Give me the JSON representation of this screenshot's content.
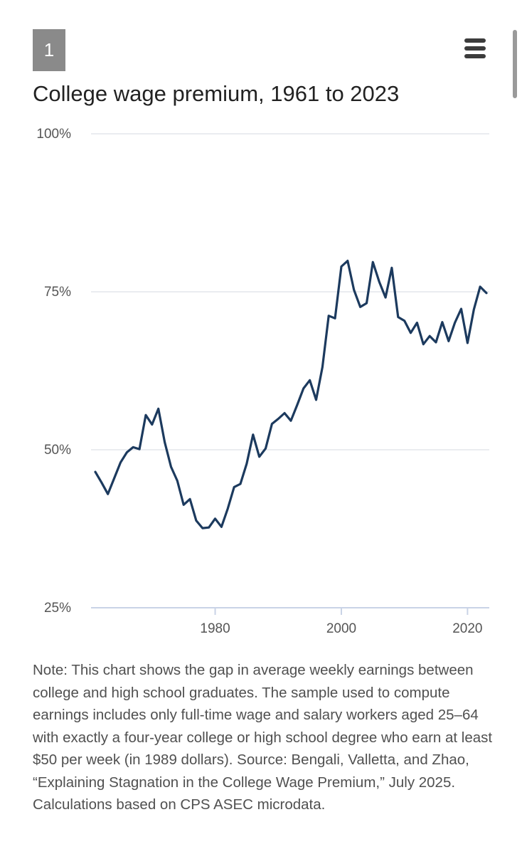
{
  "figure": {
    "number_label": "1",
    "menu_icon": "hamburger-menu-icon",
    "note": "Note: This chart shows the gap in average weekly earnings between college and high school graduates. The sample used to compute earnings includes only full-time wage and salary workers aged 25–64 with exactly a four-year college or high school degree who earn at least $50 per week (in 1989 dollars). Source: Bengali, Valletta, and Zhao, “Explaining Stagnation in the College Wage Premium,” July 2025. Calculations based on CPS ASEC microdata."
  },
  "chart_data": {
    "type": "line",
    "title": "College wage premium, 1961 to 2023",
    "xlabel": "",
    "ylabel": "",
    "xlim": [
      1961,
      2023
    ],
    "ylim": [
      25,
      100
    ],
    "y_ticks": [
      25,
      50,
      75,
      100
    ],
    "y_tick_labels": [
      "25%",
      "50%",
      "75%",
      "100%"
    ],
    "x_ticks": [
      1980,
      2000,
      2020
    ],
    "x_tick_labels": [
      "1980",
      "2000",
      "2020"
    ],
    "grid": true,
    "line_color": "#1c3a5e",
    "series": [
      {
        "name": "College wage premium",
        "x": [
          1961,
          1962,
          1963,
          1964,
          1965,
          1966,
          1967,
          1968,
          1969,
          1970,
          1971,
          1972,
          1973,
          1974,
          1975,
          1976,
          1977,
          1978,
          1979,
          1980,
          1981,
          1982,
          1983,
          1984,
          1985,
          1986,
          1987,
          1988,
          1989,
          1990,
          1991,
          1992,
          1993,
          1994,
          1995,
          1996,
          1997,
          1998,
          1999,
          2000,
          2001,
          2002,
          2003,
          2004,
          2005,
          2006,
          2007,
          2008,
          2009,
          2010,
          2011,
          2012,
          2013,
          2014,
          2015,
          2016,
          2017,
          2018,
          2019,
          2020,
          2021,
          2022,
          2023
        ],
        "values": [
          46.5,
          44.8,
          43.0,
          45.5,
          48.0,
          49.6,
          50.4,
          50.1,
          55.5,
          54.0,
          56.5,
          51.2,
          47.3,
          45.1,
          41.3,
          42.2,
          38.8,
          37.6,
          37.7,
          39.1,
          37.8,
          40.7,
          44.1,
          44.6,
          47.8,
          52.4,
          48.9,
          50.2,
          54.1,
          54.9,
          55.8,
          54.6,
          57.1,
          59.7,
          61.0,
          57.9,
          63.1,
          71.2,
          70.8,
          79.0,
          79.9,
          75.3,
          72.6,
          73.2,
          79.7,
          76.6,
          74.1,
          78.8,
          71.0,
          70.4,
          68.5,
          70.1,
          66.7,
          68.0,
          67.0,
          70.2,
          67.2,
          70.1,
          72.3,
          66.9,
          72.2,
          75.8,
          74.8
        ]
      }
    ]
  }
}
